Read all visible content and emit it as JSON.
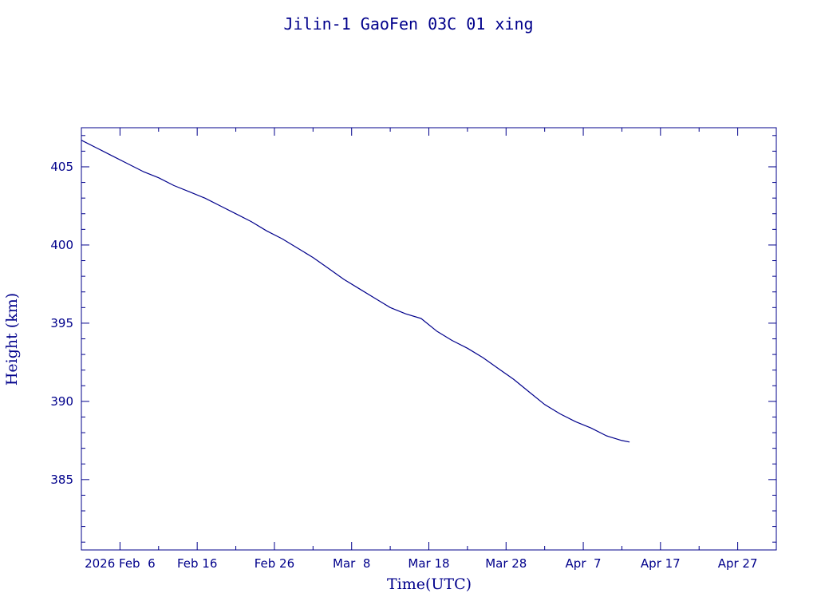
{
  "colors": {
    "ink": "#00008b",
    "background": "#ffffff"
  },
  "chart_data": {
    "type": "line",
    "title": "Jilin-1 GaoFen 03C 01 xing",
    "xlabel": "Time(UTC)",
    "ylabel": "Height (km)",
    "x_axis_type": "date",
    "xlim": [
      "2026-02-01",
      "2026-05-02"
    ],
    "ylim": [
      380.5,
      407.5
    ],
    "x_ticks": [
      {
        "date": "2026-02-06",
        "label": "2026 Feb  6"
      },
      {
        "date": "2026-02-16",
        "label": "Feb 16"
      },
      {
        "date": "2026-02-26",
        "label": "Feb 26"
      },
      {
        "date": "2026-03-08",
        "label": "Mar  8"
      },
      {
        "date": "2026-03-18",
        "label": "Mar 18"
      },
      {
        "date": "2026-03-28",
        "label": "Mar 28"
      },
      {
        "date": "2026-04-07",
        "label": "Apr  7"
      },
      {
        "date": "2026-04-17",
        "label": "Apr 17"
      },
      {
        "date": "2026-04-27",
        "label": "Apr 27"
      }
    ],
    "y_ticks": [
      385,
      390,
      395,
      400,
      405
    ],
    "y_minor_step": 1,
    "series": [
      {
        "x": [
          "2026-02-01",
          "2026-02-03",
          "2026-02-05",
          "2026-02-07",
          "2026-02-09",
          "2026-02-11",
          "2026-02-13",
          "2026-02-15",
          "2026-02-17",
          "2026-02-19",
          "2026-02-21",
          "2026-02-23",
          "2026-02-25",
          "2026-02-27",
          "2026-03-01",
          "2026-03-03",
          "2026-03-05",
          "2026-03-07",
          "2026-03-09",
          "2026-03-11",
          "2026-03-13",
          "2026-03-15",
          "2026-03-17",
          "2026-03-19",
          "2026-03-21",
          "2026-03-23",
          "2026-03-25",
          "2026-03-27",
          "2026-03-29",
          "2026-03-31",
          "2026-04-02",
          "2026-04-04",
          "2026-04-06",
          "2026-04-08",
          "2026-04-10",
          "2026-04-12",
          "2026-04-13"
        ],
        "y": [
          406.7,
          406.2,
          405.7,
          405.2,
          404.7,
          404.3,
          403.8,
          403.4,
          403.0,
          402.5,
          402.0,
          401.5,
          400.9,
          400.4,
          399.8,
          399.2,
          398.5,
          397.8,
          397.2,
          396.6,
          396.0,
          395.6,
          395.3,
          394.5,
          393.9,
          393.4,
          392.8,
          392.1,
          391.4,
          390.6,
          389.8,
          389.2,
          388.7,
          388.3,
          387.8,
          387.5,
          387.4
        ]
      }
    ]
  }
}
